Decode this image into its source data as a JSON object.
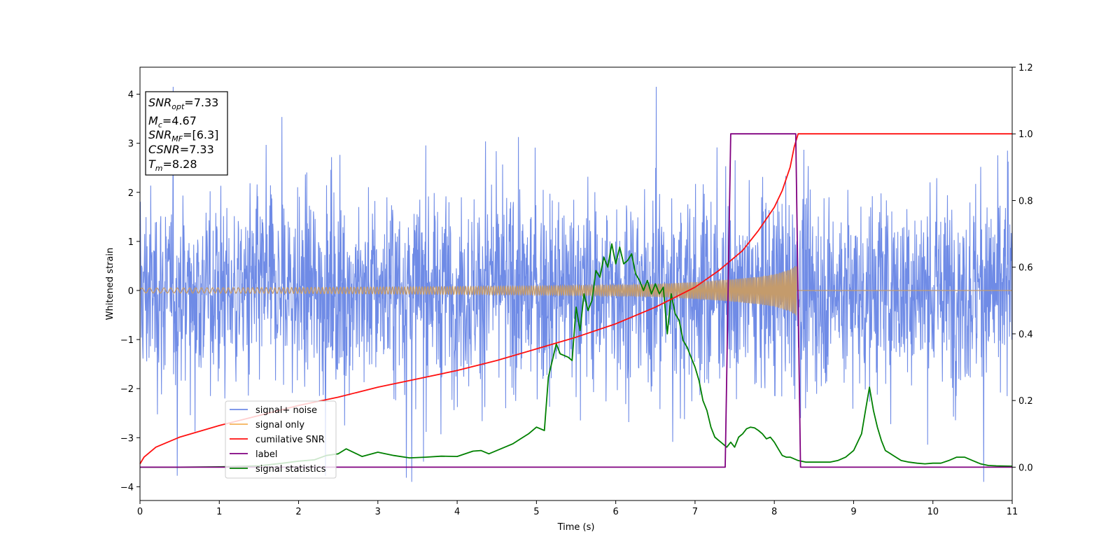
{
  "chart_data": {
    "type": "line",
    "title": "",
    "xlabel": "Time (s)",
    "ylabel": "Whitened strain",
    "xlim": [
      0,
      11
    ],
    "ylim": [
      -4.28,
      4.55
    ],
    "y2lim": [
      -0.1,
      1.2
    ],
    "xticks": [
      "0",
      "1",
      "2",
      "3",
      "4",
      "5",
      "6",
      "7",
      "8",
      "9",
      "10",
      "11"
    ],
    "yticks": [
      "4",
      "3",
      "2",
      "1",
      "0",
      "−1",
      "−2",
      "−3",
      "−4"
    ],
    "y2ticks": [
      "1.2",
      "1.0",
      "0.8",
      "0.6",
      "0.4",
      "0.2",
      "0.0"
    ],
    "grid": false,
    "legend_position": "lower-left",
    "colors": {
      "noise": "#6f8be6",
      "signal": "#f5b35a",
      "csnr": "#ff1010",
      "label": "#800080",
      "stats": "#008000"
    },
    "legend": [
      {
        "key": "noise",
        "label": "signal+ noise"
      },
      {
        "key": "signal",
        "label": "signal only"
      },
      {
        "key": "csnr",
        "label": "cumilative SNR"
      },
      {
        "key": "label",
        "label": "label"
      },
      {
        "key": "stats",
        "label": "signal statistics"
      }
    ],
    "annotation": {
      "snr_opt": "7.33",
      "mc": "4.67",
      "snr_mf": "[6.3]",
      "csnr": "7.33",
      "tm": "8.28"
    },
    "series": [
      {
        "key": "noise",
        "name": "signal+ noise",
        "axis": "left",
        "description_level": "noise band approx ±1.3 with spikes up to ±4"
      },
      {
        "key": "signal",
        "name": "signal only",
        "axis": "left",
        "amplitude": [
          [
            0,
            0.05
          ],
          [
            2,
            0.06
          ],
          [
            4,
            0.08
          ],
          [
            5,
            0.09
          ],
          [
            6,
            0.11
          ],
          [
            6.5,
            0.13
          ],
          [
            7,
            0.17
          ],
          [
            7.5,
            0.23
          ],
          [
            7.8,
            0.28
          ],
          [
            8.0,
            0.33
          ],
          [
            8.2,
            0.43
          ],
          [
            8.28,
            0.52
          ]
        ],
        "end_time": 8.28
      },
      {
        "key": "csnr",
        "name": "cumilative SNR",
        "axis": "right",
        "x": [
          0,
          0.05,
          0.2,
          0.5,
          1,
          1.5,
          2,
          2.5,
          3,
          3.5,
          4,
          4.5,
          5,
          5.5,
          6,
          6.5,
          7,
          7.3,
          7.6,
          7.8,
          8.0,
          8.1,
          8.2,
          8.25,
          8.3,
          11
        ],
        "y": [
          0.01,
          0.03,
          0.06,
          0.09,
          0.125,
          0.155,
          0.185,
          0.21,
          0.24,
          0.265,
          0.29,
          0.32,
          0.355,
          0.39,
          0.43,
          0.48,
          0.54,
          0.59,
          0.65,
          0.71,
          0.78,
          0.83,
          0.9,
          0.96,
          1.0,
          1.0
        ]
      },
      {
        "key": "label",
        "name": "label",
        "axis": "right",
        "x": [
          0,
          7.38,
          7.45,
          8.27,
          8.33,
          11
        ],
        "y": [
          0,
          0,
          1,
          1,
          0,
          0
        ]
      },
      {
        "key": "stats",
        "name": "signal statistics",
        "axis": "right",
        "x": [
          0,
          0.5,
          1,
          1.5,
          1.8,
          2.0,
          2.2,
          2.35,
          2.5,
          2.6,
          2.8,
          3.0,
          3.2,
          3.4,
          3.6,
          3.8,
          4.0,
          4.2,
          4.3,
          4.4,
          4.6,
          4.7,
          4.8,
          4.9,
          5.0,
          5.1,
          5.15,
          5.25,
          5.3,
          5.4,
          5.45,
          5.5,
          5.55,
          5.6,
          5.65,
          5.7,
          5.75,
          5.8,
          5.85,
          5.9,
          5.95,
          6.0,
          6.05,
          6.1,
          6.15,
          6.2,
          6.25,
          6.3,
          6.35,
          6.4,
          6.45,
          6.5,
          6.55,
          6.6,
          6.65,
          6.7,
          6.75,
          6.8,
          6.85,
          6.9,
          6.95,
          7.0,
          7.05,
          7.1,
          7.15,
          7.2,
          7.25,
          7.3,
          7.35,
          7.4,
          7.45,
          7.5,
          7.55,
          7.6,
          7.65,
          7.7,
          7.75,
          7.8,
          7.85,
          7.9,
          7.95,
          8.0,
          8.05,
          8.1,
          8.15,
          8.2,
          8.3,
          8.4,
          8.5,
          8.6,
          8.7,
          8.8,
          8.9,
          9.0,
          9.1,
          9.15,
          9.2,
          9.25,
          9.3,
          9.35,
          9.4,
          9.5,
          9.6,
          9.7,
          9.8,
          9.9,
          10.0,
          10.1,
          10.2,
          10.3,
          10.4,
          10.5,
          10.6,
          10.7,
          10.8,
          11
        ],
        "y": [
          0,
          0,
          0.001,
          0.004,
          0.012,
          0.018,
          0.022,
          0.035,
          0.04,
          0.055,
          0.032,
          0.045,
          0.035,
          0.028,
          0.03,
          0.033,
          0.032,
          0.048,
          0.05,
          0.04,
          0.06,
          0.07,
          0.085,
          0.1,
          0.12,
          0.11,
          0.27,
          0.37,
          0.34,
          0.33,
          0.32,
          0.48,
          0.41,
          0.52,
          0.47,
          0.5,
          0.59,
          0.57,
          0.63,
          0.6,
          0.67,
          0.61,
          0.66,
          0.61,
          0.62,
          0.64,
          0.58,
          0.56,
          0.53,
          0.56,
          0.52,
          0.55,
          0.52,
          0.54,
          0.4,
          0.52,
          0.46,
          0.44,
          0.38,
          0.36,
          0.33,
          0.3,
          0.26,
          0.2,
          0.17,
          0.12,
          0.09,
          0.08,
          0.07,
          0.06,
          0.075,
          0.06,
          0.09,
          0.1,
          0.115,
          0.12,
          0.118,
          0.11,
          0.1,
          0.085,
          0.09,
          0.075,
          0.055,
          0.035,
          0.03,
          0.03,
          0.02,
          0.015,
          0.015,
          0.015,
          0.015,
          0.02,
          0.03,
          0.05,
          0.1,
          0.17,
          0.24,
          0.17,
          0.12,
          0.08,
          0.05,
          0.035,
          0.02,
          0.015,
          0.012,
          0.01,
          0.012,
          0.012,
          0.02,
          0.03,
          0.03,
          0.02,
          0.01,
          0.005,
          0.004,
          0.003
        ]
      }
    ]
  }
}
